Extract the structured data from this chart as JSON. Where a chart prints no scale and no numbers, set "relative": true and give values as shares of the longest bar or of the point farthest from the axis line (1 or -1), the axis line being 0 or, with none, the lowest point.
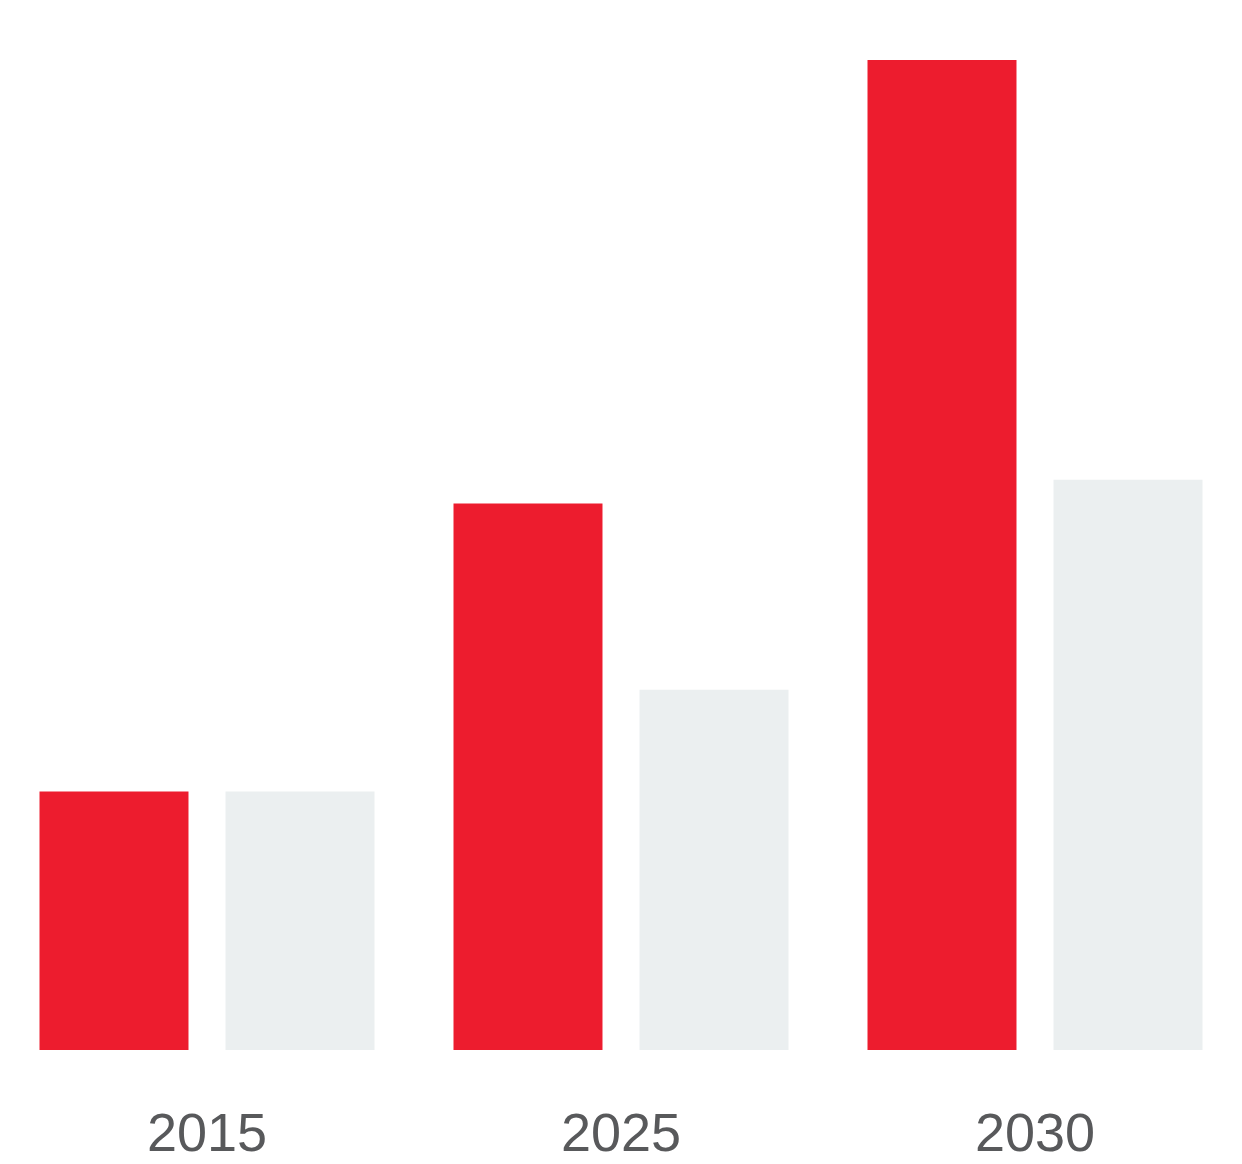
{
  "chart_data": {
    "type": "bar",
    "relative": true,
    "categories": [
      "2015",
      "2025",
      "2030"
    ],
    "series": [
      {
        "color": "#ed1c2e",
        "values": [
          0.261,
          0.552,
          1
        ]
      },
      {
        "color": "#ebeff0",
        "values": [
          0.261,
          0.364,
          0.576
        ]
      }
    ]
  }
}
